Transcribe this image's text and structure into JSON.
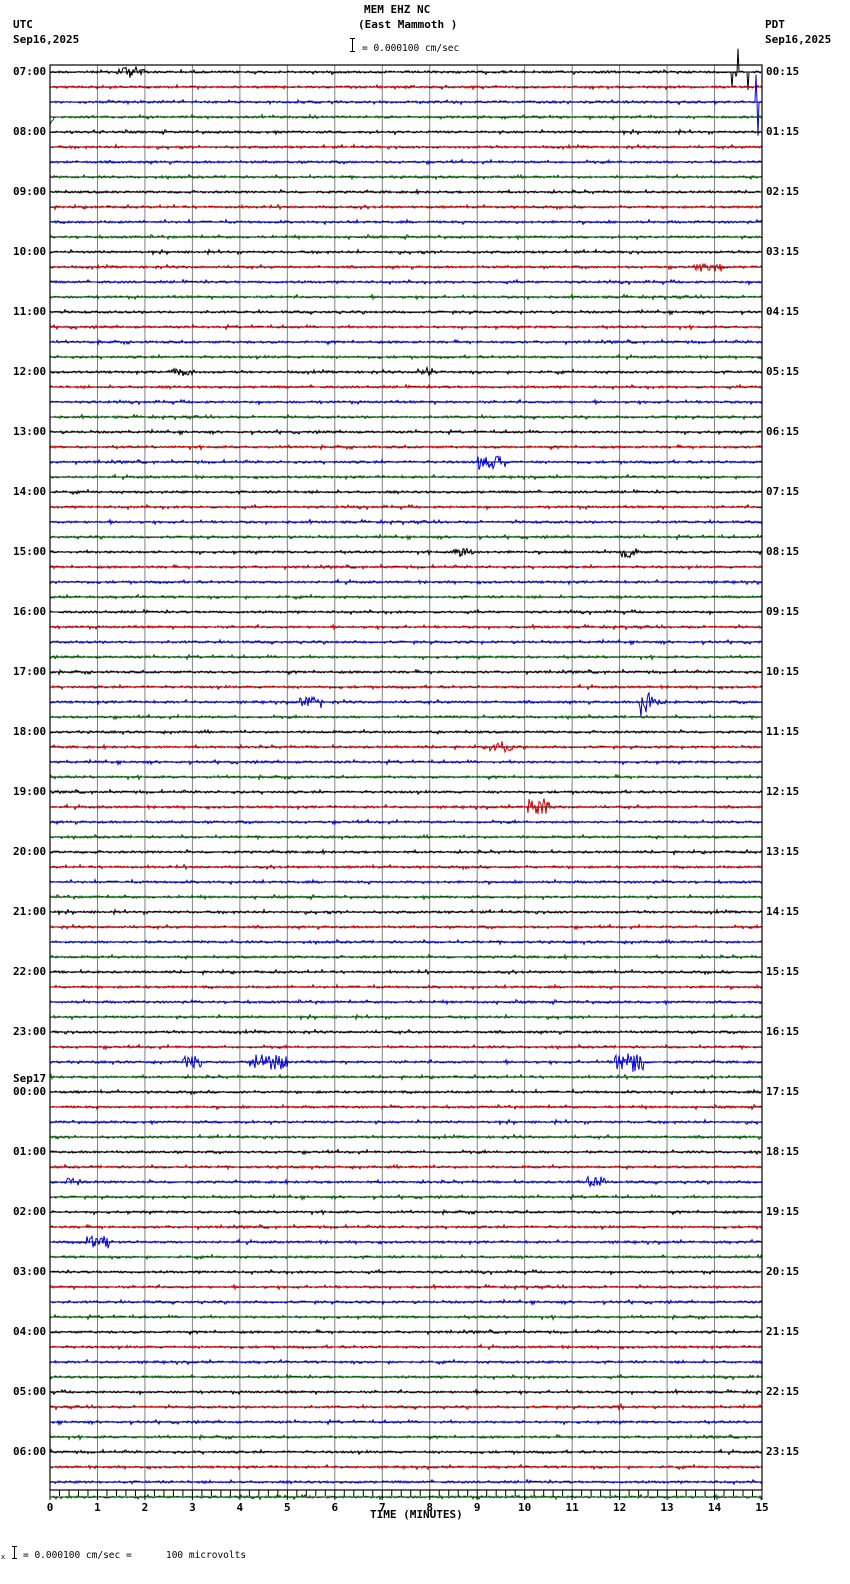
{
  "header": {
    "station": "MEM EHZ NC",
    "location": "(East Mammoth )",
    "scale_text": "= 0.000100 cm/sec",
    "left_tz": "UTC",
    "left_date": "Sep16,2025",
    "right_tz": "PDT",
    "right_date": "Sep16,2025"
  },
  "footer": {
    "scale_prefix": "x",
    "scale_text": "= 0.000100 cm/sec =      100 microvolts"
  },
  "colors": {
    "trace_cycle": [
      "#000000",
      "#cc0000",
      "#0000dd",
      "#006600"
    ],
    "grid": "#808080",
    "frame": "#000000"
  },
  "chart_data": {
    "type": "line",
    "title": "MEM EHZ NC (East Mammoth )",
    "subtitle": "= 0.000100 cm/sec",
    "xlabel": "TIME (MINUTES)",
    "ylabel": "",
    "xlim": [
      0,
      15
    ],
    "x_ticks": [
      "0",
      "1",
      "2",
      "3",
      "4",
      "5",
      "6",
      "7",
      "8",
      "9",
      "10",
      "11",
      "12",
      "13",
      "14",
      "15"
    ],
    "minor_tick_step": 0.2,
    "grid": true,
    "traces_per_hour": 4,
    "trace_count": 96,
    "left_labels": [
      {
        "row": 0,
        "text": "07:00"
      },
      {
        "row": 4,
        "text": "08:00"
      },
      {
        "row": 8,
        "text": "09:00"
      },
      {
        "row": 12,
        "text": "10:00"
      },
      {
        "row": 16,
        "text": "11:00"
      },
      {
        "row": 20,
        "text": "12:00"
      },
      {
        "row": 24,
        "text": "13:00"
      },
      {
        "row": 28,
        "text": "14:00"
      },
      {
        "row": 32,
        "text": "15:00"
      },
      {
        "row": 36,
        "text": "16:00"
      },
      {
        "row": 40,
        "text": "17:00"
      },
      {
        "row": 44,
        "text": "18:00"
      },
      {
        "row": 48,
        "text": "19:00"
      },
      {
        "row": 52,
        "text": "20:00"
      },
      {
        "row": 56,
        "text": "21:00"
      },
      {
        "row": 60,
        "text": "22:00"
      },
      {
        "row": 64,
        "text": "23:00"
      },
      {
        "row": 68,
        "text": "00:00",
        "date": "Sep17"
      },
      {
        "row": 72,
        "text": "01:00"
      },
      {
        "row": 76,
        "text": "02:00"
      },
      {
        "row": 80,
        "text": "03:00"
      },
      {
        "row": 84,
        "text": "04:00"
      },
      {
        "row": 88,
        "text": "05:00"
      },
      {
        "row": 92,
        "text": "06:00"
      }
    ],
    "right_labels": [
      "00:15",
      "01:15",
      "02:15",
      "03:15",
      "04:15",
      "05:15",
      "06:15",
      "07:15",
      "08:15",
      "09:15",
      "10:15",
      "11:15",
      "12:15",
      "13:15",
      "14:15",
      "15:15",
      "16:15",
      "17:15",
      "18:15",
      "19:15",
      "20:15",
      "21:15",
      "22:15",
      "23:15"
    ],
    "events": [
      {
        "row": 0,
        "minute": 1.7,
        "amp": 5,
        "dur": 0.6
      },
      {
        "row": 0,
        "minute": 14.3,
        "amp": 28,
        "dur": 0.7,
        "type": "spike"
      },
      {
        "row": 2,
        "minute": 14.5,
        "amp": 60,
        "dur": 0.5,
        "type": "spike"
      },
      {
        "row": 3,
        "minute": 0.0,
        "amp": 8,
        "dur": 0.1,
        "type": "step"
      },
      {
        "row": 13,
        "minute": 13.9,
        "amp": 4,
        "dur": 0.6
      },
      {
        "row": 20,
        "minute": 2.8,
        "amp": 4,
        "dur": 0.5
      },
      {
        "row": 20,
        "minute": 7.9,
        "amp": 4,
        "dur": 0.3
      },
      {
        "row": 26,
        "minute": 9.3,
        "amp": 6,
        "dur": 0.6
      },
      {
        "row": 32,
        "minute": 8.7,
        "amp": 5,
        "dur": 0.4
      },
      {
        "row": 32,
        "minute": 12.2,
        "amp": 5,
        "dur": 0.4
      },
      {
        "row": 42,
        "minute": 5.5,
        "amp": 5,
        "dur": 0.5
      },
      {
        "row": 42,
        "minute": 12.4,
        "amp": 30,
        "dur": 0.8,
        "type": "quake"
      },
      {
        "row": 45,
        "minute": 9.5,
        "amp": 5,
        "dur": 0.5
      },
      {
        "row": 49,
        "minute": 10.3,
        "amp": 8,
        "dur": 0.5
      },
      {
        "row": 66,
        "minute": 3.0,
        "amp": 7,
        "dur": 0.4
      },
      {
        "row": 66,
        "minute": 4.6,
        "amp": 8,
        "dur": 0.8
      },
      {
        "row": 66,
        "minute": 12.2,
        "amp": 9,
        "dur": 0.6
      },
      {
        "row": 74,
        "minute": 0.5,
        "amp": 5,
        "dur": 0.3
      },
      {
        "row": 74,
        "minute": 11.5,
        "amp": 5,
        "dur": 0.4
      },
      {
        "row": 78,
        "minute": 1.0,
        "amp": 6,
        "dur": 0.5
      },
      {
        "row": 89,
        "minute": 12.0,
        "amp": 6,
        "dur": 0.1
      }
    ]
  }
}
